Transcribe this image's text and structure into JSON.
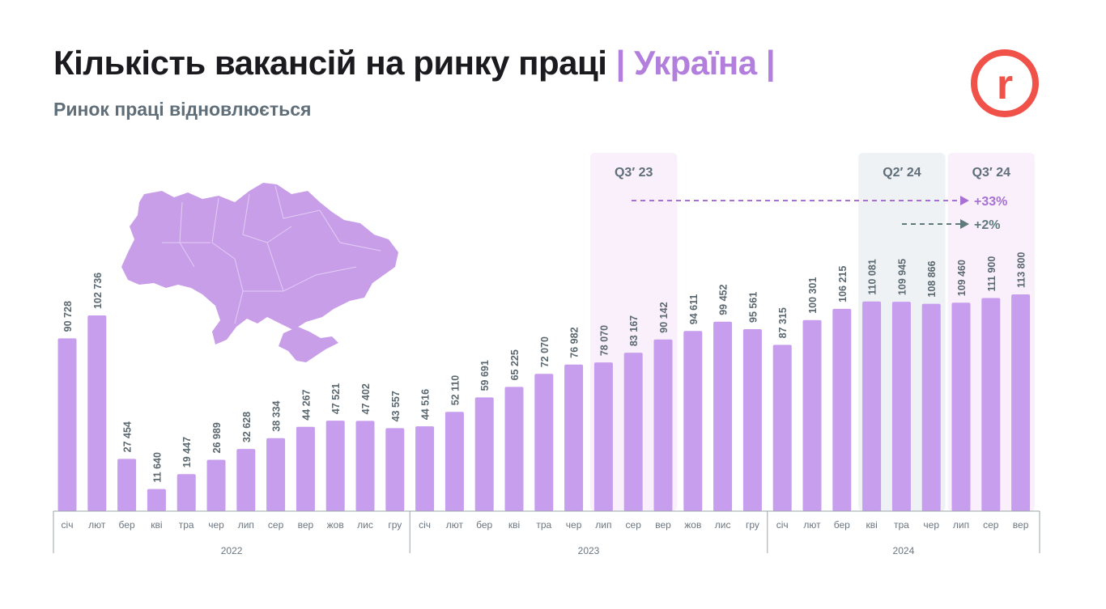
{
  "header": {
    "title_main": "Кількість вакансій на ринку праці",
    "title_accent": "| Україна |",
    "subtitle": "Ринок праці відновлюється",
    "logo_letter": "r"
  },
  "colors": {
    "bar": "#c79ded",
    "title_accent": "#b27fdc",
    "logo": "#f0524a",
    "highlight_q3": "#f9f0fc",
    "highlight_q2": "#eef2f4",
    "arrow_33": "#a771cf",
    "arrow_2": "#5f7a7c",
    "label": "#5b6870"
  },
  "chart_data": {
    "type": "bar",
    "title": "Кількість вакансій на ринку праці | Україна |",
    "subtitle": "Ринок праці відновлюється",
    "years": [
      {
        "label": "2022",
        "months": [
          "січ",
          "лют",
          "бер",
          "кві",
          "тра",
          "чер",
          "лип",
          "сер",
          "вер",
          "жов",
          "лис",
          "гру"
        ],
        "values": [
          90728,
          102736,
          27454,
          11640,
          19447,
          26989,
          32628,
          38334,
          44267,
          47521,
          47402,
          43557
        ]
      },
      {
        "label": "2023",
        "months": [
          "січ",
          "лют",
          "бер",
          "кві",
          "тра",
          "чер",
          "лип",
          "сер",
          "вер",
          "жов",
          "лис",
          "гру"
        ],
        "values": [
          44516,
          52110,
          59691,
          65225,
          72070,
          76982,
          78070,
          83167,
          90142,
          94611,
          99452,
          95561
        ]
      },
      {
        "label": "2024",
        "months": [
          "січ",
          "лют",
          "бер",
          "кві",
          "тра",
          "чер",
          "лип",
          "сер",
          "вер"
        ],
        "values": [
          87315,
          100301,
          106215,
          110081,
          109945,
          108866,
          109460,
          111900,
          113800
        ]
      }
    ],
    "value_labels": [
      [
        "90 728",
        "102 736",
        "27 454",
        "11 640",
        "19 447",
        "26 989",
        "32 628",
        "38 334",
        "44 267",
        "47 521",
        "47 402",
        "43 557"
      ],
      [
        "44 516",
        "52 110",
        "59 691",
        "65 225",
        "72 070",
        "76 982",
        "78 070",
        "83 167",
        "90 142",
        "94 611",
        "99 452",
        "95 561"
      ],
      [
        "87 315",
        "100 301",
        "106 215",
        "110 081",
        "109 945",
        "108 866",
        "109 460",
        "111 900",
        "113 800"
      ]
    ],
    "ylim": [
      0,
      120000
    ],
    "grid": false,
    "highlights": [
      {
        "label": "Q3′ 23",
        "year": "2023",
        "months": [
          "лип",
          "сер",
          "вер"
        ],
        "style": "pink"
      },
      {
        "label": "Q2′ 24",
        "year": "2024",
        "months": [
          "кві",
          "тра",
          "чер"
        ],
        "style": "grey"
      },
      {
        "label": "Q3′ 24",
        "year": "2024",
        "months": [
          "лип",
          "сер",
          "вер"
        ],
        "style": "pink"
      }
    ],
    "annotations": [
      {
        "text": "+33%",
        "from": "Q3′ 23",
        "to": "Q3′ 24"
      },
      {
        "text": "+2%",
        "from": "Q2′ 24",
        "to": "Q3′ 24"
      }
    ]
  }
}
